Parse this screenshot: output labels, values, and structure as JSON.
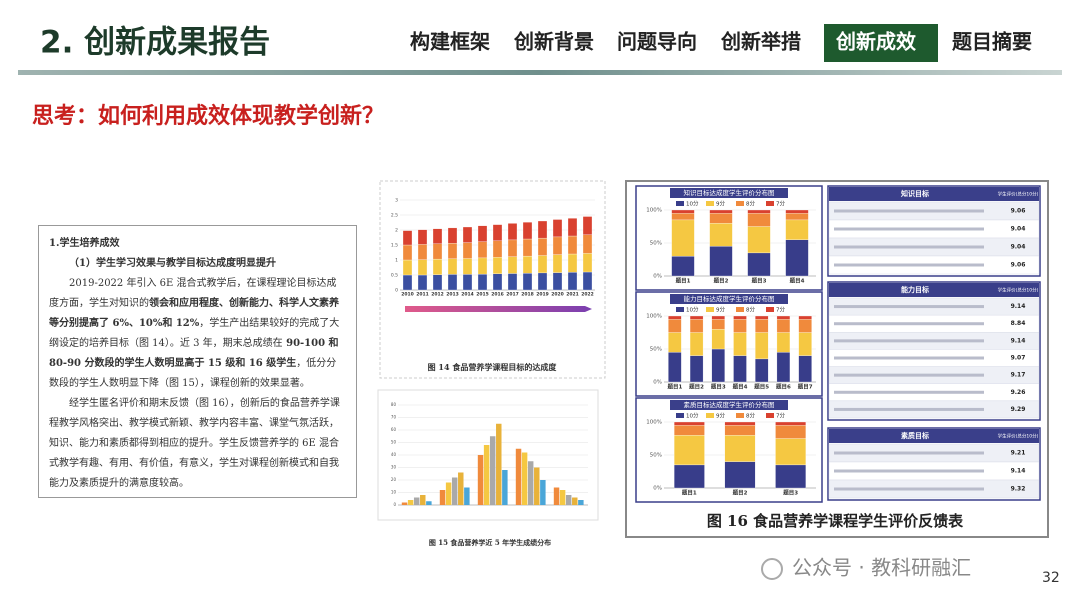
{
  "header": {
    "title": "2. 创新成果报告",
    "tabs": [
      "构建框架",
      "创新背景",
      "问题导向",
      "创新举措",
      "创新成效",
      "题目摘要"
    ],
    "active_tab": 4
  },
  "question": "思考：如何利用成效体现教学创新？",
  "text_box": {
    "heading": "1.学生培养成效",
    "subheading": "（1）学生学习效果与教学目标达成度明显提升",
    "paragraphs": [
      [
        {
          "text": "2019-2022 年引入 6E 混合式教学后，在课程理论目标达成度方面，学生对知识的",
          "bold": false
        },
        {
          "text": "领会和应用程度、创新能力、科学人文素养等分别提高了 6%、10%和 12%",
          "bold": true
        },
        {
          "text": "，学生产出结果较好的完成了大纲设定的培养目标（图 14）。近 3 年，期末总成绩在",
          "bold": false
        },
        {
          "text": " 90-100 和 80-90 分数段的学生人数明显高于 15 级和 16 级学生",
          "bold": true
        },
        {
          "text": "，低分分数段的学生人数明显下降（图 15），课程创新的效果显著。",
          "bold": false
        }
      ],
      [
        {
          "text": "经学生匿名评价和期末反馈（图 16），创新后的食品营养学课程教学风格突出、教学模式新颖、教学内容丰富、课堂气氛活跃，知识、能力和素质都得到相应的提升。学生反馈营养学的 6E 混合式教学有趣、有用、有价值，有意义，学生对课程创新模式和自我能力及素质提升的满意度较高。",
          "bold": false
        }
      ]
    ]
  },
  "figure14": {
    "caption": "图 14 食品营养学课程目标的达成度",
    "chart": {
      "type": "bar",
      "stacked": true,
      "categories": [
        "2010",
        "2011",
        "2012",
        "2013",
        "2014",
        "2015",
        "2016",
        "2017",
        "2018",
        "2019",
        "2020",
        "2021",
        "2022"
      ],
      "series": [
        {
          "color": "#3b4fa0",
          "values": [
            0.5,
            0.5,
            0.51,
            0.52,
            0.52,
            0.53,
            0.54,
            0.55,
            0.56,
            0.57,
            0.58,
            0.59,
            0.6
          ]
        },
        {
          "color": "#f5c842",
          "values": [
            0.5,
            0.51,
            0.52,
            0.52,
            0.53,
            0.54,
            0.55,
            0.56,
            0.57,
            0.58,
            0.6,
            0.61,
            0.62
          ]
        },
        {
          "color": "#f08a3c",
          "values": [
            0.5,
            0.51,
            0.51,
            0.52,
            0.53,
            0.54,
            0.55,
            0.56,
            0.57,
            0.58,
            0.59,
            0.6,
            0.62
          ]
        },
        {
          "color": "#d9412f",
          "values": [
            0.48,
            0.49,
            0.5,
            0.51,
            0.52,
            0.53,
            0.54,
            0.55,
            0.56,
            0.57,
            0.58,
            0.59,
            0.61
          ]
        }
      ],
      "ylim": [
        0,
        3
      ],
      "yticks": [
        0,
        0.5,
        1,
        1.5,
        2,
        2.5,
        3
      ]
    }
  },
  "figure15": {
    "caption": "图 15 食品营养学近 5 年学生成绩分布",
    "chart": {
      "type": "bar",
      "stacked": false,
      "categories": [
        null,
        null,
        null,
        null,
        null
      ],
      "series": [
        {
          "color": "#f08a3c",
          "values": [
            2,
            12,
            40,
            45,
            14
          ]
        },
        {
          "color": "#f5c842",
          "values": [
            4,
            18,
            48,
            42,
            12
          ]
        },
        {
          "color": "#a9a9a9",
          "values": [
            6,
            22,
            55,
            35,
            8
          ]
        },
        {
          "color": "#e8b23a",
          "values": [
            8,
            26,
            65,
            30,
            6
          ]
        },
        {
          "color": "#4aa6d8",
          "values": [
            3,
            14,
            28,
            20,
            4
          ]
        }
      ],
      "ylim": [
        0,
        80
      ],
      "yticks": [
        0,
        10,
        20,
        30,
        40,
        50,
        60,
        70,
        80
      ]
    }
  },
  "figure16": {
    "caption": "图 16 食品营养学课程学生评价反馈表",
    "charts": [
      {
        "type": "bar",
        "stacked": true,
        "title": "知识目标达成度学生评价分布图",
        "categories": [
          "题目1",
          "题目2",
          "题目3",
          "题目4"
        ],
        "series": [
          {
            "name": "10分",
            "color": "#383d8a",
            "values": [
              30,
              45,
              35,
              55
            ]
          },
          {
            "name": "9分",
            "color": "#f5c842",
            "values": [
              55,
              35,
              40,
              30
            ]
          },
          {
            "name": "8分",
            "color": "#f08a3c",
            "values": [
              10,
              15,
              20,
              10
            ]
          },
          {
            "name": "7分",
            "color": "#d9412f",
            "values": [
              5,
              5,
              5,
              5
            ]
          }
        ],
        "ylim": [
          0,
          100
        ],
        "yticks": [
          {
            "value": 0,
            "label": "0%"
          },
          {
            "value": 50,
            "label": "50%"
          },
          {
            "value": 100,
            "label": "100%"
          }
        ]
      },
      {
        "type": "bar",
        "stacked": true,
        "title": "能力目标达成度学生评价分布图",
        "categories": [
          "题目1",
          "题目2",
          "题目3",
          "题目4",
          "题目5",
          "题目6",
          "题目7"
        ],
        "series": [
          {
            "name": "10分",
            "color": "#383d8a",
            "values": [
              45,
              40,
              50,
              40,
              35,
              45,
              40
            ]
          },
          {
            "name": "9分",
            "color": "#f5c842",
            "values": [
              30,
              35,
              30,
              35,
              40,
              30,
              35
            ]
          },
          {
            "name": "8分",
            "color": "#f08a3c",
            "values": [
              20,
              20,
              15,
              20,
              20,
              20,
              20
            ]
          },
          {
            "name": "7分",
            "color": "#d9412f",
            "values": [
              5,
              5,
              5,
              5,
              5,
              5,
              5
            ]
          }
        ],
        "ylim": [
          0,
          100
        ],
        "yticks": [
          {
            "value": 0,
            "label": "0%"
          },
          {
            "value": 50,
            "label": "50%"
          },
          {
            "value": 100,
            "label": "100%"
          }
        ]
      },
      {
        "type": "bar",
        "stacked": true,
        "title": "素质目标达成度学生评价分布图",
        "categories": [
          "题目1",
          "题目2",
          "题目3"
        ],
        "series": [
          {
            "name": "10分",
            "color": "#383d8a",
            "values": [
              35,
              40,
              35
            ]
          },
          {
            "name": "9分",
            "color": "#f5c842",
            "values": [
              45,
              40,
              40
            ]
          },
          {
            "name": "8分",
            "color": "#f08a3c",
            "values": [
              15,
              15,
              20
            ]
          },
          {
            "name": "7分",
            "color": "#d9412f",
            "values": [
              5,
              5,
              5
            ]
          }
        ],
        "ylim": [
          0,
          100
        ],
        "yticks": [
          {
            "value": 0,
            "label": "0%"
          },
          {
            "value": 50,
            "label": "50%"
          },
          {
            "value": 100,
            "label": "100%"
          }
        ]
      }
    ],
    "tables": [
      {
        "title": "知识目标",
        "header": "学生评价(总分10分)",
        "scores": [
          9.06,
          9.04,
          9.04,
          9.06
        ]
      },
      {
        "title": "能力目标",
        "header": "学生评价(总分10分)",
        "scores": [
          9.14,
          8.84,
          9.14,
          9.07,
          9.17,
          9.26,
          9.29
        ]
      },
      {
        "title": "素质目标",
        "header": "学生评价(总分10分)",
        "scores": [
          9.21,
          9.14,
          9.32
        ]
      }
    ]
  },
  "footer": {
    "watermark": "公众号 · 教科研融汇",
    "page": "32"
  }
}
